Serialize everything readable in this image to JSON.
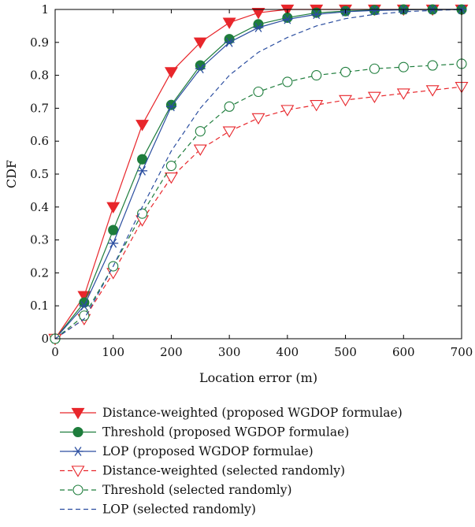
{
  "chart_data": {
    "type": "line",
    "xlabel": "Location error (m)",
    "ylabel": "CDF",
    "xlim": [
      0,
      700
    ],
    "ylim": [
      0,
      1
    ],
    "xticks": [
      "0",
      "100",
      "200",
      "300",
      "400",
      "500",
      "600",
      "700"
    ],
    "yticks": [
      "0",
      "0.1",
      "0.2",
      "0.3",
      "0.4",
      "0.5",
      "0.6",
      "0.7",
      "0.8",
      "0.9",
      "1"
    ],
    "grid": false,
    "legend_position": "below",
    "x": [
      0,
      50,
      100,
      150,
      200,
      250,
      300,
      350,
      400,
      450,
      500,
      550,
      600,
      650,
      700
    ],
    "series": [
      {
        "name": "Distance-weighted (proposed WGDOP formulae)",
        "color": "#e8262b",
        "line": "solid",
        "marker": "triangle-down-filled",
        "values": [
          0,
          0.13,
          0.4,
          0.65,
          0.81,
          0.9,
          0.96,
          0.99,
          1,
          1,
          1,
          1,
          1,
          1,
          1
        ]
      },
      {
        "name": "Threshold (proposed WGDOP formulae)",
        "color": "#1e7d3c",
        "line": "solid",
        "marker": "circle-filled",
        "values": [
          0,
          0.11,
          0.33,
          0.545,
          0.71,
          0.83,
          0.91,
          0.955,
          0.975,
          0.99,
          0.995,
          0.998,
          1,
          1,
          1
        ]
      },
      {
        "name": "LOP (proposed WGDOP formulae)",
        "color": "#2b4ea0",
        "line": "solid",
        "marker": "asterisk",
        "values": [
          0,
          0.1,
          0.29,
          0.51,
          0.705,
          0.82,
          0.9,
          0.945,
          0.97,
          0.985,
          0.993,
          0.997,
          0.999,
          1,
          1
        ]
      },
      {
        "name": "Distance-weighted (selected randomly)",
        "color": "#e8262b",
        "line": "dashed",
        "marker": "triangle-down-open",
        "values": [
          0,
          0.06,
          0.2,
          0.36,
          0.49,
          0.575,
          0.63,
          0.67,
          0.695,
          0.71,
          0.725,
          0.735,
          0.745,
          0.755,
          0.765
        ]
      },
      {
        "name": "Threshold (selected randomly)",
        "color": "#1e7d3c",
        "line": "dashed",
        "marker": "circle-open",
        "values": [
          0,
          0.07,
          0.22,
          0.38,
          0.525,
          0.63,
          0.705,
          0.75,
          0.78,
          0.8,
          0.81,
          0.82,
          0.825,
          0.83,
          0.835
        ]
      },
      {
        "name": "LOP (selected randomly)",
        "color": "#2b4ea0",
        "line": "dashed",
        "marker": "none",
        "values": [
          0,
          0.06,
          0.22,
          0.4,
          0.57,
          0.7,
          0.8,
          0.87,
          0.915,
          0.95,
          0.972,
          0.985,
          0.993,
          0.997,
          1
        ]
      }
    ]
  }
}
